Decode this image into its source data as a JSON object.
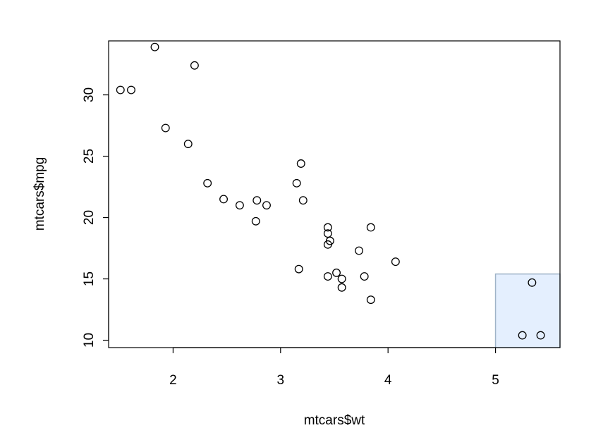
{
  "chart_data": {
    "type": "scatter",
    "xlabel": "mtcars$wt",
    "ylabel": "mtcars$mpg",
    "xlim": [
      1.4,
      5.6
    ],
    "ylim": [
      9.4,
      34.4
    ],
    "x_ticks": [
      "2",
      "3",
      "4",
      "5"
    ],
    "y_ticks": [
      "10",
      "15",
      "20",
      "25",
      "30"
    ],
    "grid": false,
    "points": [
      {
        "x": 1.83,
        "y": 33.9
      },
      {
        "x": 2.2,
        "y": 32.4
      },
      {
        "x": 1.51,
        "y": 30.4
      },
      {
        "x": 1.61,
        "y": 30.4
      },
      {
        "x": 1.93,
        "y": 27.3
      },
      {
        "x": 2.14,
        "y": 26.0
      },
      {
        "x": 3.19,
        "y": 24.4
      },
      {
        "x": 2.32,
        "y": 22.8
      },
      {
        "x": 3.15,
        "y": 22.8
      },
      {
        "x": 2.47,
        "y": 21.5
      },
      {
        "x": 2.62,
        "y": 21.0
      },
      {
        "x": 2.78,
        "y": 21.4
      },
      {
        "x": 2.87,
        "y": 21.0
      },
      {
        "x": 3.21,
        "y": 21.4
      },
      {
        "x": 2.77,
        "y": 19.7
      },
      {
        "x": 3.44,
        "y": 19.2
      },
      {
        "x": 3.84,
        "y": 19.2
      },
      {
        "x": 3.44,
        "y": 18.7
      },
      {
        "x": 3.46,
        "y": 18.1
      },
      {
        "x": 3.44,
        "y": 17.8
      },
      {
        "x": 3.73,
        "y": 17.3
      },
      {
        "x": 4.07,
        "y": 16.4
      },
      {
        "x": 3.17,
        "y": 15.8
      },
      {
        "x": 3.52,
        "y": 15.5
      },
      {
        "x": 3.44,
        "y": 15.2
      },
      {
        "x": 3.78,
        "y": 15.2
      },
      {
        "x": 3.57,
        "y": 15.0
      },
      {
        "x": 3.57,
        "y": 14.3
      },
      {
        "x": 3.84,
        "y": 13.3
      },
      {
        "x": 5.34,
        "y": 14.7
      },
      {
        "x": 5.25,
        "y": 10.4
      },
      {
        "x": 5.42,
        "y": 10.4
      }
    ],
    "selection_region": {
      "x0": 5.0,
      "x1": 5.6,
      "y0": 9.4,
      "y1": 15.4,
      "color": "#dbeafe"
    }
  }
}
